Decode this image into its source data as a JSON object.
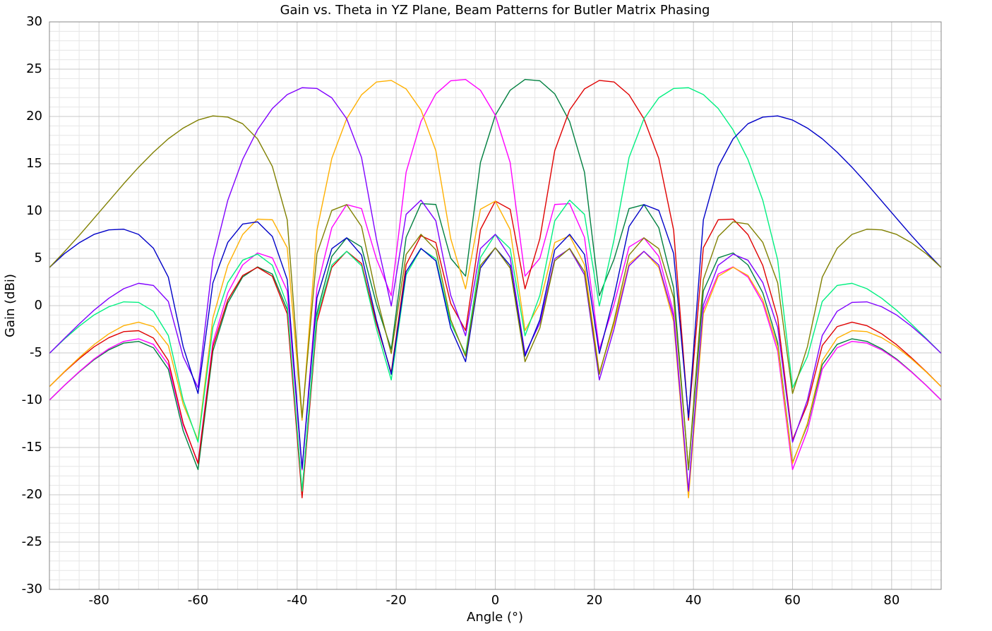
{
  "chart_data": {
    "type": "line",
    "title": "Gain vs. Theta in YZ Plane, Beam Patterns for Butler Matrix Phasing",
    "x_label": "Angle (°)",
    "y_label": "Gain (dBi)",
    "xlim": [
      -90,
      90
    ],
    "ylim": [
      -30,
      30
    ],
    "xticks": [
      -80,
      -60,
      -40,
      -20,
      0,
      20,
      40,
      60,
      80
    ],
    "yticks": [
      -30,
      -25,
      -20,
      -15,
      -10,
      -5,
      0,
      5,
      10,
      15,
      20,
      25,
      30
    ],
    "grid": true,
    "x": [
      -90,
      -87,
      -84,
      -81,
      -78,
      -75,
      -72,
      -69,
      -66,
      -63,
      -60,
      -57,
      -54,
      -51,
      -48,
      -45,
      -42,
      -39,
      -36,
      -33,
      -30,
      -27,
      -24,
      -21,
      -18,
      -15,
      -12,
      -9,
      -6,
      -3,
      0,
      3,
      6,
      9,
      12,
      15,
      18,
      21,
      24,
      27,
      30,
      33,
      36,
      39,
      42,
      45,
      48,
      51,
      54,
      57,
      60,
      63,
      66,
      69,
      72,
      75,
      78,
      81,
      84,
      87,
      90
    ],
    "series": [
      {
        "color": "#008040",
        "values": [
          -9.99,
          -8.45,
          -7.02,
          -5.72,
          -4.68,
          -3.96,
          -3.78,
          -4.46,
          -6.72,
          -13.23,
          -17.34,
          -4.81,
          0.28,
          3.03,
          4.09,
          3.34,
          -0.43,
          -19.66,
          -0.79,
          5.21,
          7.17,
          6.2,
          0.18,
          -4.62,
          7.22,
          10.79,
          10.69,
          5.01,
          3.12,
          15.13,
          20.13,
          22.77,
          23.91,
          23.77,
          22.39,
          19.47,
          14.11,
          1.05,
          4.95,
          10.26,
          10.68,
          8.24,
          1.84,
          -17.37,
          1.56,
          5.05,
          5.57,
          4.3,
          1.35,
          -3.91,
          -16.6,
          -12.63,
          -6.24,
          -4.1,
          -3.51,
          -3.78,
          -4.56,
          -5.65,
          -6.99,
          -8.44,
          -9.99
        ]
      },
      {
        "color": "#ff00ff",
        "values": [
          -9.99,
          -8.44,
          -6.99,
          -5.65,
          -4.56,
          -3.78,
          -3.51,
          -4.1,
          -6.24,
          -12.63,
          -16.6,
          -3.91,
          1.35,
          4.3,
          5.57,
          5.05,
          1.56,
          -17.37,
          1.84,
          8.24,
          10.68,
          10.26,
          4.95,
          1.05,
          14.11,
          19.47,
          22.39,
          23.77,
          23.91,
          22.77,
          20.13,
          15.13,
          3.12,
          5.01,
          10.69,
          10.79,
          7.22,
          -4.62,
          0.18,
          6.2,
          7.17,
          5.21,
          -0.79,
          -19.66,
          -0.43,
          3.34,
          4.09,
          3.03,
          0.28,
          -4.81,
          -17.34,
          -13.23,
          -6.72,
          -4.46,
          -3.78,
          -3.96,
          -4.68,
          -5.72,
          -7.02,
          -8.45,
          -9.99
        ]
      },
      {
        "color": "#e00000",
        "values": [
          -8.56,
          -7.02,
          -5.62,
          -4.36,
          -3.39,
          -2.75,
          -2.65,
          -3.43,
          -5.81,
          -12.45,
          -16.7,
          -4.32,
          0.6,
          3.18,
          4.05,
          3.1,
          -0.87,
          -20.32,
          -1.7,
          4.05,
          5.74,
          4.45,
          -1.9,
          -7.07,
          4.33,
          7.39,
          6.67,
          0.23,
          -2.63,
          8.04,
          11.05,
          10.19,
          1.77,
          7.09,
          16.38,
          20.68,
          22.91,
          23.81,
          23.64,
          22.29,
          19.76,
          15.57,
          7.97,
          -12.12,
          6.13,
          9.08,
          9.15,
          7.51,
          4.24,
          -1.29,
          -14.21,
          -10.43,
          -4.22,
          -2.22,
          -1.75,
          -2.12,
          -2.98,
          -4.13,
          -5.51,
          -6.99,
          -8.56
        ]
      },
      {
        "color": "#ffb000",
        "values": [
          -8.56,
          -6.99,
          -5.51,
          -4.13,
          -2.98,
          -2.12,
          -1.75,
          -2.22,
          -4.22,
          -10.43,
          -14.21,
          -1.29,
          4.24,
          7.51,
          9.15,
          9.08,
          6.13,
          -12.12,
          7.97,
          15.57,
          19.76,
          22.29,
          23.64,
          23.81,
          22.91,
          20.68,
          16.38,
          7.09,
          1.77,
          10.19,
          11.05,
          8.04,
          -2.63,
          0.23,
          6.67,
          7.39,
          4.33,
          -7.07,
          -1.9,
          4.45,
          5.74,
          4.05,
          -1.7,
          -20.32,
          -0.87,
          3.1,
          4.05,
          3.18,
          0.6,
          -4.32,
          -16.7,
          -12.45,
          -5.81,
          -3.43,
          -2.65,
          -2.75,
          -3.39,
          -4.36,
          -5.62,
          -7.02,
          -8.56
        ]
      },
      {
        "color": "#00f080",
        "values": [
          -5.05,
          -3.54,
          -2.18,
          -0.99,
          -0.12,
          0.4,
          0.34,
          -0.6,
          -3.16,
          -9.99,
          -14.44,
          -2.28,
          2.43,
          4.8,
          5.44,
          4.27,
          0.07,
          -19.61,
          -1.21,
          4.29,
          5.74,
          4.21,
          -2.41,
          -7.86,
          3.26,
          6.01,
          4.96,
          -1.85,
          -5.12,
          5.08,
          7.54,
          6.03,
          -3.19,
          1.09,
          8.96,
          11.15,
          9.65,
          -0.04,
          7.05,
          15.66,
          19.76,
          21.97,
          22.96,
          23.04,
          22.31,
          20.84,
          18.58,
          15.45,
          11.13,
          4.83,
          -8.69,
          -5.4,
          0.44,
          2.13,
          2.36,
          1.79,
          0.78,
          -0.49,
          -1.95,
          -3.48,
          -5.05
        ]
      },
      {
        "color": "#8000ff",
        "values": [
          -5.05,
          -3.48,
          -1.95,
          -0.49,
          0.78,
          1.79,
          2.36,
          2.13,
          0.44,
          -5.4,
          -8.69,
          4.83,
          11.13,
          15.45,
          18.58,
          20.84,
          22.31,
          23.04,
          22.96,
          21.97,
          19.76,
          15.66,
          7.05,
          -0.04,
          9.65,
          11.15,
          8.96,
          1.09,
          -3.19,
          6.03,
          7.54,
          5.08,
          -5.12,
          -1.85,
          4.96,
          6.01,
          3.26,
          -7.86,
          -2.41,
          4.21,
          5.74,
          4.29,
          -1.21,
          -19.61,
          0.07,
          4.27,
          5.44,
          4.8,
          2.43,
          -2.28,
          -14.44,
          -9.99,
          -3.16,
          -0.6,
          0.34,
          0.4,
          -0.12,
          -0.99,
          -2.18,
          -3.54,
          -5.05
        ]
      },
      {
        "color": "#0000c8",
        "values": [
          4.03,
          5.48,
          6.64,
          7.53,
          8.01,
          8.08,
          7.53,
          6.06,
          3.01,
          -4.35,
          -9.29,
          2.41,
          6.68,
          8.62,
          8.86,
          7.31,
          2.76,
          -17.24,
          0.82,
          6.02,
          7.17,
          5.35,
          -1.54,
          -7.26,
          3.58,
          6.05,
          4.73,
          -2.36,
          -5.93,
          3.97,
          6.11,
          4.25,
          -5.35,
          -1.49,
          5.9,
          7.54,
          5.41,
          -5.07,
          1.04,
          8.37,
          10.68,
          10.07,
          5.5,
          -11.83,
          9.07,
          14.71,
          17.63,
          19.23,
          19.93,
          20.06,
          19.62,
          18.77,
          17.64,
          16.22,
          14.63,
          12.89,
          11.06,
          9.23,
          7.41,
          5.68,
          4.03
        ]
      },
      {
        "color": "#808000",
        "values": [
          4.03,
          5.68,
          7.41,
          9.23,
          11.06,
          12.89,
          14.63,
          16.22,
          17.64,
          18.77,
          19.62,
          20.06,
          19.93,
          19.23,
          17.63,
          14.71,
          9.07,
          -11.83,
          5.5,
          10.07,
          10.68,
          8.37,
          1.04,
          -5.07,
          5.41,
          7.54,
          5.9,
          -1.49,
          -5.35,
          4.25,
          6.11,
          3.97,
          -5.93,
          -2.36,
          4.73,
          6.05,
          3.58,
          -7.26,
          -1.54,
          5.35,
          7.17,
          6.02,
          0.82,
          -17.24,
          2.76,
          7.31,
          8.86,
          8.62,
          6.68,
          2.41,
          -9.29,
          -4.35,
          3.01,
          6.06,
          7.53,
          8.08,
          8.01,
          7.53,
          6.64,
          5.48,
          4.03
        ]
      }
    ]
  }
}
